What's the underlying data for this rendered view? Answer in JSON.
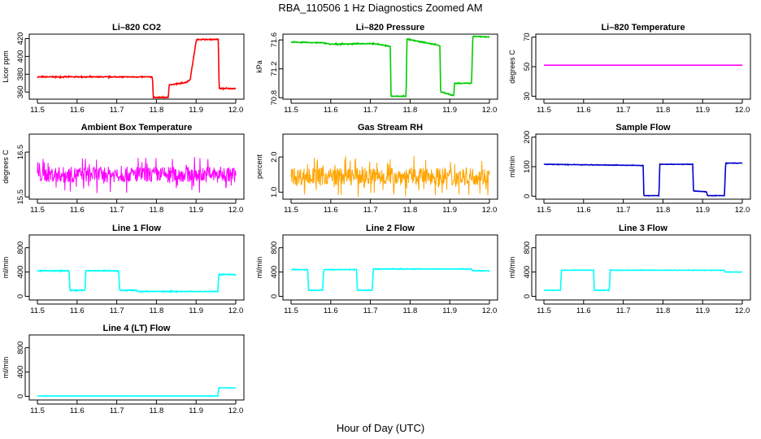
{
  "figure": {
    "title": "RBA_110506  1 Hz Diagnostics Zoomed AM",
    "xlabel": "Hour of Day (UTC)"
  },
  "chart_data": [
    {
      "type": "line",
      "title": "Li–820 CO2",
      "ylabel": "Licor ppm",
      "color": "#ff0000",
      "xlim": [
        11.5,
        12.0
      ],
      "ylim": [
        352,
        425
      ],
      "yticks": [
        360,
        380,
        400,
        420
      ],
      "xticks": [
        "11.5",
        "11.6",
        "11.7",
        "11.8",
        "11.9",
        "12.0"
      ],
      "noise": 0.8,
      "series": [
        {
          "x": [
            11.5,
            11.79,
            11.792,
            11.83,
            11.832,
            11.865,
            11.875,
            11.885,
            11.9,
            11.902,
            11.956,
            11.958,
            12.0
          ],
          "y": [
            377,
            377,
            354,
            354,
            368,
            370,
            371,
            374,
            417,
            419,
            419,
            364,
            364
          ]
        }
      ]
    },
    {
      "type": "line",
      "title": "Li–820 Pressure",
      "ylabel": "kPa",
      "color": "#00cc00",
      "xlim": [
        11.5,
        12.0
      ],
      "ylim": [
        70.78,
        71.68
      ],
      "yticks": [
        "70.8",
        "71.2",
        "71.6"
      ],
      "xticks": [
        "11.5",
        "11.6",
        "11.7",
        "11.8",
        "11.9",
        "12.0"
      ],
      "noise": 0.008,
      "series": [
        {
          "x": [
            11.5,
            11.58,
            11.6,
            11.7,
            11.72,
            11.74,
            11.75,
            11.752,
            11.79,
            11.792,
            11.87,
            11.875,
            11.877,
            11.91,
            11.912,
            11.955,
            11.958,
            12.0
          ],
          "y": [
            71.57,
            71.56,
            71.54,
            71.55,
            71.54,
            71.52,
            71.51,
            70.82,
            70.82,
            71.61,
            71.53,
            71.52,
            70.88,
            70.83,
            71.0,
            71.0,
            71.65,
            71.64
          ]
        }
      ]
    },
    {
      "type": "line",
      "title": "Li–820 Temperature",
      "ylabel": "degrees C",
      "color": "#ff00ff",
      "xlim": [
        11.5,
        12.0
      ],
      "ylim": [
        28,
        72
      ],
      "yticks": [
        30,
        50,
        70
      ],
      "xticks": [
        "11.5",
        "11.6",
        "11.7",
        "11.8",
        "11.9",
        "12.0"
      ],
      "noise": 0,
      "series": [
        {
          "x": [
            11.5,
            12.0
          ],
          "y": [
            51,
            51
          ]
        }
      ]
    },
    {
      "type": "line",
      "title": "Ambient Box Temperature",
      "ylabel": "degrees C",
      "color": "#ff00ff",
      "xlim": [
        11.5,
        12.0
      ],
      "ylim": [
        15.45,
        16.9
      ],
      "yticks": [
        "15.5",
        "16.5"
      ],
      "xticks": [
        "11.5",
        "11.6",
        "11.7",
        "11.8",
        "11.9",
        "12.0"
      ],
      "noise": 0.35,
      "series": [
        {
          "x": [
            11.5,
            12.0
          ],
          "y": [
            16.0,
            16.0
          ]
        }
      ]
    },
    {
      "type": "line",
      "title": "Gas Stream RH",
      "ylabel": "percent",
      "color": "#ffa500",
      "xlim": [
        11.5,
        12.0
      ],
      "ylim": [
        0.8,
        2.65
      ],
      "yticks": [
        "1.0",
        "2.0"
      ],
      "xticks": [
        "11.5",
        "11.6",
        "11.7",
        "11.8",
        "11.9",
        "12.0"
      ],
      "noise": 0.5,
      "series": [
        {
          "x": [
            11.5,
            12.0
          ],
          "y": [
            1.45,
            1.45
          ]
        }
      ]
    },
    {
      "type": "line",
      "title": "Sample Flow",
      "ylabel": "ml/min",
      "color": "#0000cc",
      "xlim": [
        11.5,
        12.0
      ],
      "ylim": [
        -10,
        210
      ],
      "yticks": [
        0,
        100,
        200
      ],
      "xticks": [
        "11.5",
        "11.6",
        "11.7",
        "11.8",
        "11.9",
        "12.0"
      ],
      "noise": 1,
      "series": [
        {
          "x": [
            11.5,
            11.75,
            11.752,
            11.79,
            11.792,
            11.875,
            11.877,
            11.91,
            11.912,
            11.955,
            11.958,
            12.0
          ],
          "y": [
            108,
            104,
            2,
            2,
            108,
            108,
            18,
            15,
            2,
            2,
            112,
            112
          ]
        }
      ]
    },
    {
      "type": "line",
      "title": "Line 1 Flow",
      "ylabel": "ml/min",
      "color": "#00ffff",
      "xlim": [
        11.5,
        12.0
      ],
      "ylim": [
        -60,
        1010
      ],
      "yticks": [
        0,
        400,
        800
      ],
      "xticks": [
        "11.5",
        "11.6",
        "11.7",
        "11.8",
        "11.9",
        "12.0"
      ],
      "noise": 10,
      "series": [
        {
          "x": [
            11.5,
            11.58,
            11.582,
            11.62,
            11.622,
            11.705,
            11.707,
            11.75,
            11.752,
            11.955,
            11.957,
            12.0
          ],
          "y": [
            420,
            420,
            100,
            100,
            420,
            420,
            100,
            100,
            80,
            80,
            360,
            360
          ]
        }
      ]
    },
    {
      "type": "line",
      "title": "Line 2 Flow",
      "ylabel": "ml/min",
      "color": "#00ffff",
      "xlim": [
        11.5,
        12.0
      ],
      "ylim": [
        -60,
        1010
      ],
      "yticks": [
        0,
        400,
        800
      ],
      "xticks": [
        "11.5",
        "11.6",
        "11.7",
        "11.8",
        "11.9",
        "12.0"
      ],
      "noise": 6,
      "series": [
        {
          "x": [
            11.5,
            11.542,
            11.544,
            11.58,
            11.582,
            11.665,
            11.667,
            11.705,
            11.707,
            11.955,
            11.957,
            12.0
          ],
          "y": [
            440,
            440,
            100,
            100,
            440,
            440,
            100,
            100,
            450,
            450,
            420,
            420
          ]
        }
      ]
    },
    {
      "type": "line",
      "title": "Line 3 Flow",
      "ylabel": "ml/min",
      "color": "#00ffff",
      "xlim": [
        11.5,
        12.0
      ],
      "ylim": [
        -60,
        1010
      ],
      "yticks": [
        0,
        400,
        800
      ],
      "xticks": [
        "11.5",
        "11.6",
        "11.7",
        "11.8",
        "11.9",
        "12.0"
      ],
      "noise": 5,
      "series": [
        {
          "x": [
            11.5,
            11.542,
            11.544,
            11.625,
            11.627,
            11.665,
            11.667,
            11.955,
            11.957,
            12.0
          ],
          "y": [
            100,
            100,
            430,
            430,
            100,
            100,
            430,
            430,
            400,
            400
          ]
        }
      ]
    },
    {
      "type": "line",
      "title": "Line 4 (LT) Flow",
      "ylabel": "ml/min",
      "color": "#00ffff",
      "xlim": [
        11.5,
        12.0
      ],
      "ylim": [
        -60,
        1010
      ],
      "yticks": [
        0,
        400,
        800
      ],
      "xticks": [
        "11.5",
        "11.6",
        "11.7",
        "11.8",
        "11.9",
        "12.0"
      ],
      "noise": 1,
      "series": [
        {
          "x": [
            11.5,
            11.955,
            11.957,
            12.0
          ],
          "y": [
            5,
            5,
            140,
            140
          ]
        }
      ]
    }
  ]
}
